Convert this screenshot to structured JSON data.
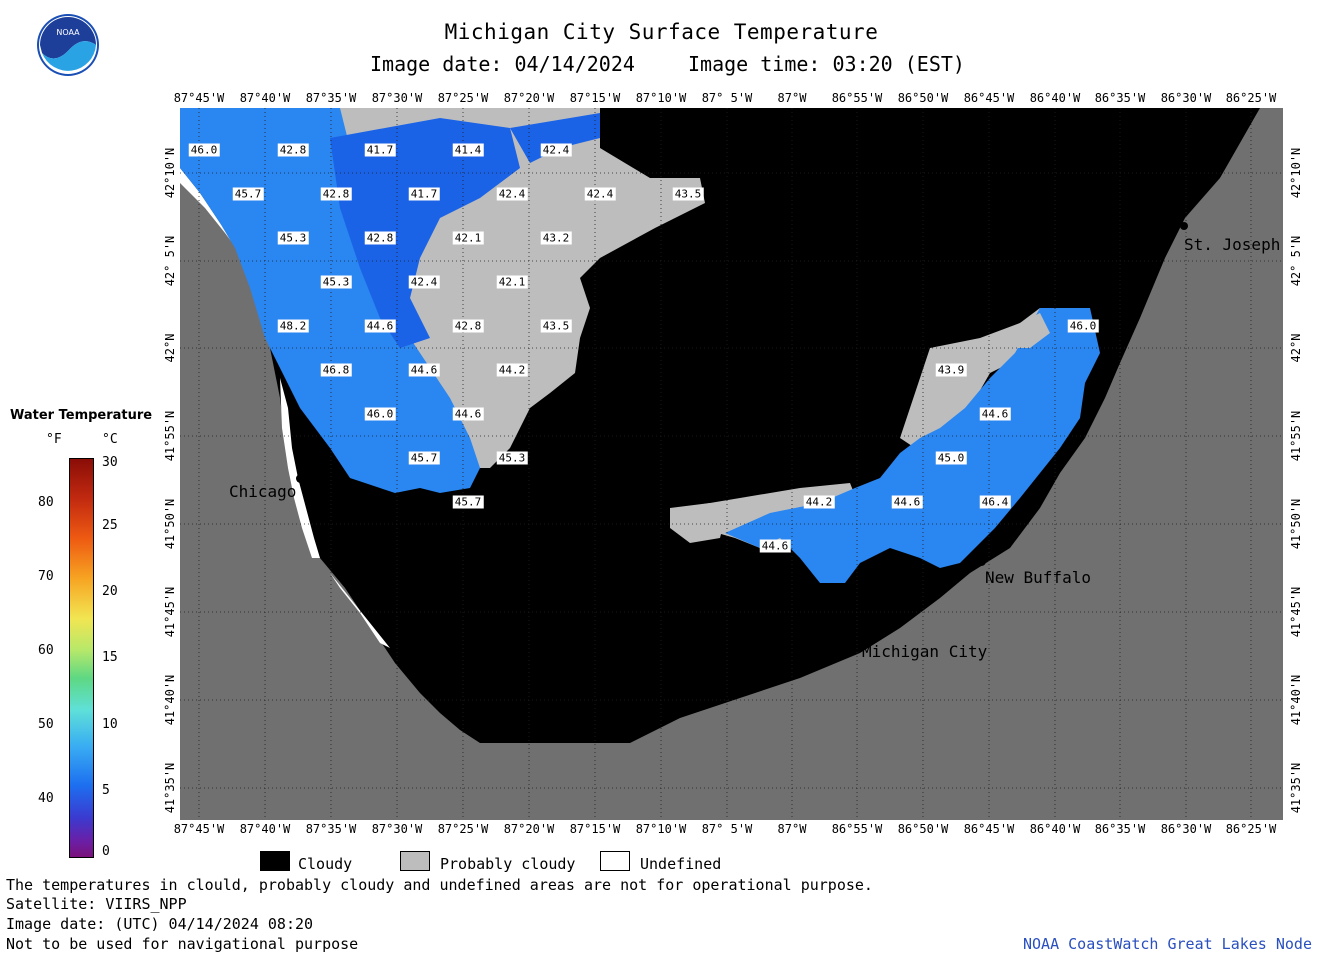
{
  "header": {
    "title": "Michigan City Surface Temperature",
    "date_label": "Image date: 04/14/2024",
    "time_label": "Image time: 03:20 (EST)",
    "logo_text": "NOAA"
  },
  "axes": {
    "lon_labels": [
      "87°45'W",
      "87°40'W",
      "87°35'W",
      "87°30'W",
      "87°25'W",
      "87°20'W",
      "87°15'W",
      "87°10'W",
      "87° 5'W",
      "87°W",
      "86°55'W",
      "86°50'W",
      "86°45'W",
      "86°40'W",
      "86°35'W",
      "86°30'W",
      "86°25'W"
    ],
    "lat_labels": [
      "42°10'N",
      "42° 5'N",
      "42°N",
      "41°55'N",
      "41°50'N",
      "41°45'N",
      "41°40'N",
      "41°35'N"
    ]
  },
  "colorbar": {
    "title": "Water Temperature",
    "unit_f": "°F",
    "unit_c": "°C",
    "f_ticks": [
      "80",
      "70",
      "60",
      "50",
      "40"
    ],
    "c_ticks": [
      "30",
      "25",
      "20",
      "15",
      "10",
      "5",
      "0"
    ]
  },
  "cities": [
    {
      "name": "Chicago"
    },
    {
      "name": "St. Joseph"
    },
    {
      "name": "New Buffalo"
    },
    {
      "name": "Michigan City"
    }
  ],
  "temperatures": [
    "46.0",
    "42.8",
    "41.7",
    "41.4",
    "42.4",
    "45.7",
    "42.8",
    "41.7",
    "42.4",
    "42.4",
    "43.5",
    "45.3",
    "42.8",
    "42.1",
    "43.2",
    "45.3",
    "42.4",
    "42.1",
    "48.2",
    "44.6",
    "42.8",
    "43.5",
    "46.8",
    "44.6",
    "44.2",
    "46.0",
    "44.6",
    "45.7",
    "45.3",
    "45.7",
    "46.0",
    "43.9",
    "44.6",
    "45.0",
    "44.2",
    "44.6",
    "46.4",
    "44.6"
  ],
  "legend": {
    "cloudy": "Cloudy",
    "probably_cloudy": "Probably cloudy",
    "undefined": "Undefined"
  },
  "footer": {
    "line1": "The temperatures in clould, probably cloudy and undefined areas are not for operational purpose.",
    "line2": "Satellite: VIIRS_NPP",
    "line3": "Image date: (UTC) 04/14/2024  08:20",
    "line4": "Not to be used for navigational purpose",
    "credit": "NOAA CoastWatch Great Lakes Node"
  },
  "colors": {
    "land": "#707070",
    "cloud": "#000000",
    "probably_cloud": "#bdbdbd",
    "water_warm": "#2a86f0",
    "water_cool": "#1a62e6"
  }
}
